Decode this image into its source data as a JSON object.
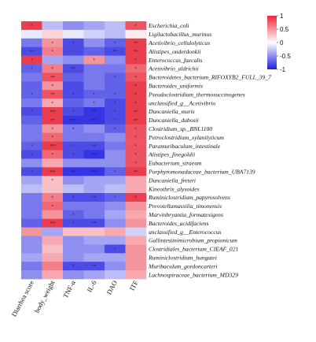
{
  "chart_data": {
    "type": "heatmap",
    "columns": [
      "Diarrhea score",
      "body_weight",
      "TNF-α",
      "IL-6",
      "DAO",
      "ITF"
    ],
    "rows": [
      "Escherichia_coli",
      "Ligilactobacillus_murinus",
      "Acetivibrio_cellulolyticus",
      "Alistipes_onderdonkii",
      "Enterococcus_faecalis",
      "Acetivibrio_aldrichii",
      "Bacteroidetes_bacterium_RIFOXYB2_FULL_39_7",
      "Bacteroides_uniformis",
      "Pseudoclostridium_thermosuccinogenes",
      "unclassified_g__Acetivibrio",
      "Duncaniella_muris",
      "Duncaniella_dubosii",
      "Clostridium_sp._BNL1100",
      "Petroclostridium_xylanilyticum",
      "Paramuribaculum_intestinale",
      "Alistipes_finegoldii",
      "Eubacterium_siraeum",
      "Porphyromonadaceae_bacterium_UBA7139",
      "Duncaniella_freteri",
      "Kineothrix_alysoides",
      "Ruminiclostridium_papyrosolvens",
      "Prevotellamassilia_timonensis",
      "Marvinbryantia_formatexigens",
      "Bacteroides_acidifaciens",
      "unclassified_g__Enterococcus",
      "Gallintestinimicrobium_propionicum",
      "Clostridiales_bacterium_CIEAF_021",
      "Ruminiclostridium_hungatei",
      "Muribaculum_gordoncarteri",
      "Lachnospiraceae_bacterium_MD329"
    ],
    "values": [
      [
        0.9,
        -0.3,
        -0.5,
        -0.4,
        -0.3,
        0.8
      ],
      [
        -0.1,
        0.2,
        -0.1,
        -0.2,
        -0.3,
        0.1
      ],
      [
        -0.6,
        0.5,
        -0.8,
        -0.5,
        -0.7,
        0.9
      ],
      [
        -0.8,
        0.6,
        -0.8,
        -0.7,
        -0.8,
        0.9
      ],
      [
        0.9,
        -0.4,
        -0.5,
        0.5,
        -0.5,
        0.9
      ],
      [
        -0.7,
        0.6,
        -0.8,
        -0.6,
        -0.6,
        0.7
      ],
      [
        -0.6,
        0.8,
        -0.7,
        -0.6,
        -0.7,
        0.8
      ],
      [
        -0.7,
        0.5,
        -0.8,
        -0.6,
        -0.7,
        0.9
      ],
      [
        -0.7,
        0.8,
        -0.8,
        -0.7,
        -0.7,
        0.9
      ],
      [
        -0.6,
        0.4,
        -0.7,
        -0.6,
        -0.8,
        0.9
      ],
      [
        -0.8,
        0.9,
        -0.8,
        -0.9,
        -0.8,
        0.9
      ],
      [
        -0.7,
        0.9,
        -0.9,
        -0.9,
        -0.8,
        0.9
      ],
      [
        -0.6,
        0.5,
        -0.6,
        -0.5,
        -0.7,
        0.8
      ],
      [
        -0.6,
        0.7,
        -0.6,
        -0.6,
        -0.5,
        0.8
      ],
      [
        -0.7,
        0.9,
        -0.8,
        -0.8,
        -0.6,
        0.8
      ],
      [
        -0.8,
        0.7,
        -0.8,
        -0.9,
        -0.5,
        0.8
      ],
      [
        -0.5,
        0.4,
        -0.5,
        -0.5,
        -0.5,
        0.8
      ],
      [
        -0.8,
        0.9,
        -0.9,
        -0.9,
        -0.7,
        0.9
      ],
      [
        -0.4,
        0.3,
        -0.5,
        -0.4,
        -0.4,
        0.4
      ],
      [
        -0.3,
        0.3,
        -0.3,
        -0.4,
        -0.3,
        0.4
      ],
      [
        -0.6,
        0.6,
        -0.8,
        -0.8,
        -0.7,
        0.9
      ],
      [
        -0.6,
        0.7,
        -0.6,
        -0.6,
        -0.5,
        0.5
      ],
      [
        -0.6,
        0.5,
        -0.7,
        -0.6,
        -0.4,
        0.4
      ],
      [
        -0.7,
        0.9,
        -0.8,
        -0.8,
        -0.5,
        0.5
      ],
      [
        0.5,
        -0.4,
        0.3,
        0.3,
        0.4,
        -0.2
      ],
      [
        -0.5,
        0.4,
        -0.5,
        -0.4,
        -0.4,
        0.4
      ],
      [
        -0.5,
        0.3,
        -0.5,
        -0.5,
        -0.8,
        0.5
      ],
      [
        -0.4,
        0.4,
        -0.5,
        -0.4,
        -0.4,
        0.5
      ],
      [
        -0.6,
        0.6,
        -0.8,
        -0.8,
        -0.5,
        0.5
      ],
      [
        -0.5,
        0.4,
        -0.5,
        -0.4,
        -0.3,
        0.4
      ]
    ],
    "significance": [
      [
        "*",
        "",
        "",
        "",
        "",
        "*"
      ],
      [
        "",
        "",
        "",
        "",
        "",
        ""
      ],
      [
        "",
        "*",
        "*",
        "",
        "*",
        "**"
      ],
      [
        "**",
        "*",
        "*",
        "",
        "**",
        "**"
      ],
      [
        "*",
        "",
        "",
        "*",
        "",
        "*"
      ],
      [
        "*",
        "*",
        "**",
        "",
        "",
        "*"
      ],
      [
        "",
        "**",
        "",
        "",
        "*",
        "*"
      ],
      [
        "",
        "*",
        "",
        "",
        "",
        "*"
      ],
      [
        "*",
        "**",
        "*",
        "*",
        "*",
        "*"
      ],
      [
        "",
        "*",
        "",
        "*",
        "*",
        "*"
      ],
      [
        "*",
        "***",
        "*",
        "**",
        "*",
        "**"
      ],
      [
        "",
        "**",
        "***",
        "***",
        "*",
        "**"
      ],
      [
        "",
        "*",
        "*",
        "",
        "*",
        "*"
      ],
      [
        "",
        "*",
        "",
        "",
        "",
        "*"
      ],
      [
        "*",
        "***",
        "*",
        "**",
        "",
        "*"
      ],
      [
        "*",
        "*",
        "*",
        "***",
        "",
        "*"
      ],
      [
        "",
        "",
        "",
        "",
        "",
        "*"
      ],
      [
        "*",
        "***",
        "**",
        "***",
        "*",
        "**"
      ],
      [
        "",
        "*",
        "",
        "",
        "",
        ""
      ],
      [
        "",
        "",
        "",
        "",
        "",
        ""
      ],
      [
        "",
        "*",
        "*",
        "**",
        "*",
        "*"
      ],
      [
        "",
        "*",
        "",
        "",
        "",
        ""
      ],
      [
        "",
        "",
        "*",
        "",
        "",
        ""
      ],
      [
        "",
        "***",
        "*",
        "**",
        "",
        ""
      ],
      [
        "",
        "",
        "",
        "",
        "",
        ""
      ],
      [
        "",
        "",
        "",
        "",
        "",
        ""
      ],
      [
        "",
        "",
        "",
        "",
        "*",
        ""
      ],
      [
        "",
        "",
        "",
        "",
        "",
        ""
      ],
      [
        "",
        "",
        "*",
        "**",
        "",
        ""
      ],
      [
        "",
        "",
        "",
        "",
        "",
        ""
      ]
    ],
    "colorbar": {
      "ticks": [
        "1",
        "0.5",
        "0",
        "-0.5",
        "-1"
      ],
      "colors": {
        "high": "#e8283a",
        "mid": "#ffffff",
        "low": "#1f1ee0"
      }
    },
    "xlim": [
      -1,
      1
    ],
    "title": "",
    "xlabel": "",
    "ylabel": ""
  }
}
